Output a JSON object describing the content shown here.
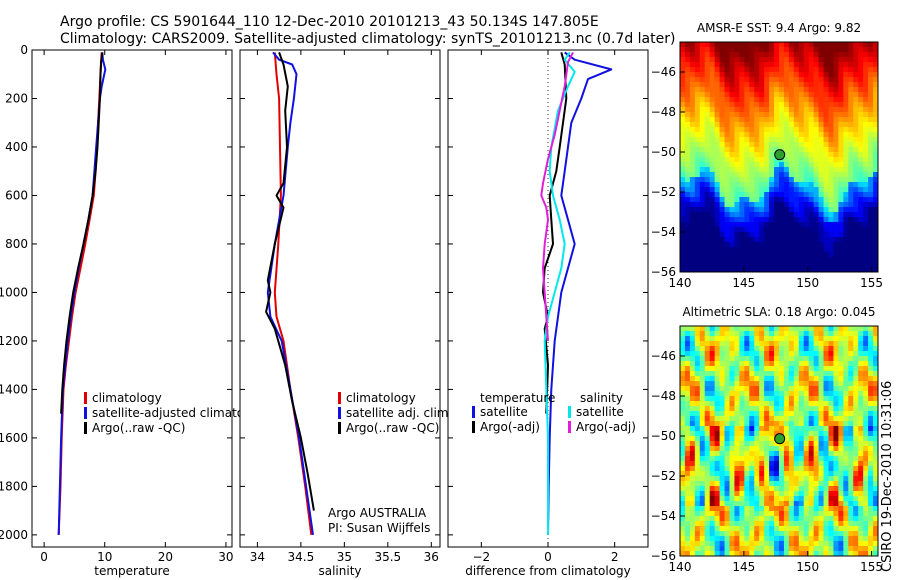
{
  "header": {
    "line1": "Argo profile: CS 5901644_110 12-Dec-2010 20101213_43 50.134S 147.805E",
    "line2": "Climatology: CARS2009. Satellite-adjusted climatology: synTS_20101213.nc (0.7d later)"
  },
  "side_label": "CSIRO 19-Dec-2010 10:31:06",
  "colors": {
    "climatology": "#e00000",
    "satellite": "#1010e0",
    "argo": "#000000",
    "salinity_satellite": "#00e8ee",
    "salinity_argo": "#e020d8"
  },
  "chart_data": [
    {
      "id": "temperature",
      "type": "line",
      "xlabel": "temperature",
      "ylabel": "",
      "xlim": [
        -2,
        31
      ],
      "ylim": [
        2050,
        0
      ],
      "xticks": [
        0,
        10,
        20,
        30
      ],
      "yticks": [
        0,
        200,
        400,
        600,
        800,
        1000,
        1200,
        1400,
        1600,
        1800,
        2000
      ],
      "legend": [
        "climatology",
        "satellite-adjusted climatology",
        "Argo(..raw -QC)"
      ],
      "legend_colors": [
        "#e00000",
        "#1010e0",
        "#000000"
      ],
      "series": [
        {
          "name": "climatology",
          "color": "#e00000",
          "points": [
            [
              9.5,
              10
            ],
            [
              9.4,
              50
            ],
            [
              9.3,
              100
            ],
            [
              9.1,
              200
            ],
            [
              8.9,
              300
            ],
            [
              8.7,
              400
            ],
            [
              8.5,
              500
            ],
            [
              8.2,
              600
            ],
            [
              7.5,
              700
            ],
            [
              6.8,
              800
            ],
            [
              6.0,
              900
            ],
            [
              5.2,
              1000
            ],
            [
              4.6,
              1100
            ],
            [
              4.1,
              1200
            ],
            [
              3.6,
              1300
            ],
            [
              3.2,
              1400
            ],
            [
              2.9,
              1600
            ],
            [
              2.7,
              1800
            ],
            [
              2.4,
              2000
            ]
          ]
        },
        {
          "name": "satellite-adjusted climatology",
          "color": "#1010e0",
          "points": [
            [
              9.6,
              10
            ],
            [
              9.7,
              40
            ],
            [
              10.1,
              80
            ],
            [
              9.5,
              150
            ],
            [
              9.2,
              200
            ],
            [
              8.9,
              300
            ],
            [
              8.6,
              400
            ],
            [
              8.3,
              500
            ],
            [
              8.0,
              600
            ],
            [
              7.3,
              700
            ],
            [
              6.5,
              800
            ],
            [
              5.7,
              900
            ],
            [
              5.0,
              1000
            ],
            [
              4.4,
              1100
            ],
            [
              3.9,
              1200
            ],
            [
              3.5,
              1300
            ],
            [
              3.1,
              1400
            ],
            [
              2.8,
              1600
            ],
            [
              2.6,
              1800
            ],
            [
              2.4,
              2000
            ]
          ]
        },
        {
          "name": "Argo(..raw -QC)",
          "color": "#000000",
          "points": [
            [
              9.6,
              10
            ],
            [
              9.4,
              50
            ],
            [
              9.3,
              100
            ],
            [
              9.2,
              200
            ],
            [
              9.0,
              300
            ],
            [
              8.8,
              400
            ],
            [
              8.5,
              500
            ],
            [
              8.0,
              600
            ],
            [
              7.3,
              700
            ],
            [
              6.5,
              800
            ],
            [
              5.6,
              900
            ],
            [
              4.8,
              1000
            ],
            [
              4.2,
              1100
            ],
            [
              3.7,
              1200
            ],
            [
              3.3,
              1300
            ],
            [
              3.0,
              1400
            ],
            [
              2.8,
              1500
            ]
          ]
        }
      ]
    },
    {
      "id": "salinity",
      "type": "line",
      "xlabel": "salinity",
      "ylabel": "",
      "xlim": [
        33.8,
        36.1
      ],
      "ylim": [
        2050,
        0
      ],
      "xticks": [
        34,
        34.5,
        35,
        35.5,
        36
      ],
      "legend": [
        "climatology",
        "satellite adj. clim.",
        "Argo(..raw -QC)"
      ],
      "legend_colors": [
        "#e00000",
        "#1010e0",
        "#000000"
      ],
      "note": [
        "Argo AUSTRALIA",
        "PI: Susan Wijffels"
      ],
      "series": [
        {
          "name": "climatology",
          "color": "#e00000",
          "points": [
            [
              34.2,
              10
            ],
            [
              34.22,
              100
            ],
            [
              34.25,
              200
            ],
            [
              34.26,
              400
            ],
            [
              34.27,
              600
            ],
            [
              34.24,
              800
            ],
            [
              34.2,
              1000
            ],
            [
              34.22,
              1100
            ],
            [
              34.3,
              1200
            ],
            [
              34.38,
              1400
            ],
            [
              34.47,
              1600
            ],
            [
              34.55,
              1800
            ],
            [
              34.62,
              2000
            ]
          ]
        },
        {
          "name": "satellite adj. clim.",
          "color": "#1010e0",
          "points": [
            [
              34.18,
              10
            ],
            [
              34.25,
              40
            ],
            [
              34.4,
              60
            ],
            [
              34.45,
              100
            ],
            [
              34.42,
              200
            ],
            [
              34.38,
              300
            ],
            [
              34.35,
              400
            ],
            [
              34.3,
              600
            ],
            [
              34.2,
              800
            ],
            [
              34.12,
              1000
            ],
            [
              34.15,
              1100
            ],
            [
              34.28,
              1200
            ],
            [
              34.38,
              1400
            ],
            [
              34.48,
              1600
            ],
            [
              34.56,
              1800
            ],
            [
              34.64,
              2000
            ]
          ]
        },
        {
          "name": "Argo(..raw -QC)",
          "color": "#000000",
          "points": [
            [
              34.25,
              10
            ],
            [
              34.3,
              60
            ],
            [
              34.35,
              150
            ],
            [
              34.32,
              250
            ],
            [
              34.34,
              400
            ],
            [
              34.3,
              550
            ],
            [
              34.22,
              600
            ],
            [
              34.3,
              650
            ],
            [
              34.2,
              800
            ],
            [
              34.12,
              950
            ],
            [
              34.15,
              1000
            ],
            [
              34.1,
              1080
            ],
            [
              34.2,
              1150
            ],
            [
              34.32,
              1300
            ],
            [
              34.4,
              1450
            ],
            [
              34.5,
              1600
            ],
            [
              34.58,
              1750
            ],
            [
              34.65,
              1900
            ]
          ]
        }
      ]
    },
    {
      "id": "difference",
      "type": "line",
      "xlabel": "difference from climatology",
      "ylabel": "",
      "xlim": [
        -3,
        3
      ],
      "ylim": [
        2050,
        0
      ],
      "xticks": [
        -2,
        0,
        2
      ],
      "legend_left_title": "temperature",
      "legend_right_title": "salinity",
      "legend": [
        "satellite",
        "Argo(-adj)",
        "satellite",
        "Argo(-adj)"
      ],
      "legend_colors": [
        "#1010e0",
        "#000000",
        "#00e8ee",
        "#e020d8"
      ],
      "series": [
        {
          "name": "satellite",
          "color": "#1010e0",
          "points": [
            [
              0.5,
              10
            ],
            [
              0.8,
              40
            ],
            [
              1.9,
              80
            ],
            [
              1.2,
              120
            ],
            [
              1.0,
              200
            ],
            [
              0.7,
              300
            ],
            [
              0.6,
              400
            ],
            [
              0.5,
              500
            ],
            [
              0.4,
              600
            ],
            [
              0.6,
              700
            ],
            [
              0.8,
              800
            ],
            [
              0.6,
              900
            ],
            [
              0.4,
              1000
            ],
            [
              0.3,
              1100
            ],
            [
              0.2,
              1200
            ],
            [
              0.1,
              1400
            ],
            [
              0.05,
              1600
            ],
            [
              0.02,
              1800
            ],
            [
              0.0,
              2000
            ]
          ]
        },
        {
          "name": "Argo(-adj)",
          "color": "#000000",
          "points": [
            [
              0.4,
              10
            ],
            [
              0.5,
              60
            ],
            [
              0.55,
              200
            ],
            [
              0.45,
              300
            ],
            [
              0.35,
              400
            ],
            [
              0.25,
              500
            ],
            [
              0.05,
              600
            ],
            [
              0.1,
              700
            ],
            [
              0.15,
              800
            ],
            [
              -0.1,
              900
            ],
            [
              -0.15,
              1000
            ],
            [
              0.0,
              1100
            ],
            [
              -0.1,
              1150
            ],
            [
              0.0,
              1300
            ],
            [
              -0.05,
              1500
            ]
          ]
        },
        {
          "name": "satellite",
          "color": "#00e8ee",
          "points": [
            [
              0.65,
              10
            ],
            [
              0.5,
              40
            ],
            [
              0.8,
              90
            ],
            [
              0.6,
              150
            ],
            [
              0.3,
              250
            ],
            [
              0.1,
              400
            ],
            [
              0.05,
              500
            ],
            [
              0.15,
              600
            ],
            [
              0.35,
              700
            ],
            [
              0.5,
              800
            ],
            [
              0.4,
              900
            ],
            [
              0.2,
              1000
            ],
            [
              0.0,
              1100
            ],
            [
              -0.1,
              1200
            ],
            [
              -0.05,
              1400
            ],
            [
              0.0,
              1600
            ],
            [
              0.0,
              1800
            ],
            [
              0.0,
              2000
            ]
          ]
        },
        {
          "name": "Argo(-adj)",
          "color": "#e020d8",
          "points": [
            [
              0.75,
              10
            ],
            [
              0.6,
              50
            ],
            [
              0.5,
              150
            ],
            [
              0.35,
              250
            ],
            [
              0.2,
              350
            ],
            [
              0.0,
              450
            ],
            [
              -0.15,
              550
            ],
            [
              -0.2,
              600
            ],
            [
              -0.05,
              650
            ],
            [
              0.0,
              700
            ],
            [
              -0.1,
              800
            ],
            [
              -0.15,
              900
            ],
            [
              -0.1,
              1000
            ],
            [
              -0.05,
              1100
            ],
            [
              0.0,
              1200
            ]
          ]
        }
      ]
    },
    {
      "id": "amsr-sst",
      "type": "heatmap",
      "title": "AMSR-E SST: 9.4 Argo: 9.82",
      "xlim": [
        140,
        155.5
      ],
      "ylim": [
        -56,
        -44.5
      ],
      "xticks": [
        140,
        145,
        150,
        155
      ],
      "yticks": [
        -46,
        -48,
        -50,
        -52,
        -54,
        -56
      ],
      "marker": [
        147.805,
        -50.134
      ]
    },
    {
      "id": "altimetric-sla",
      "type": "heatmap",
      "title": "Altimetric SLA: 0.18 Argo: 0.045",
      "xlim": [
        140,
        155.5
      ],
      "ylim": [
        -56,
        -44.5
      ],
      "xticks": [
        140,
        145,
        150,
        155
      ],
      "yticks": [
        -46,
        -48,
        -50,
        -52,
        -54,
        -56
      ],
      "marker": [
        147.805,
        -50.134
      ]
    }
  ]
}
